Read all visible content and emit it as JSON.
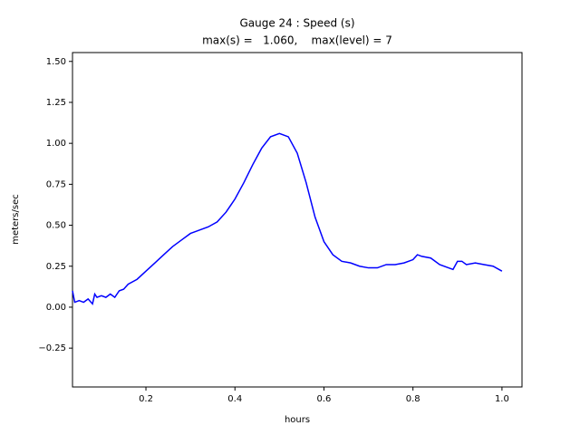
{
  "chart_data": {
    "type": "line",
    "title": "Gauge 24 : Speed (s)",
    "subtitle": "max(s) =   1.060,    max(level) = 7",
    "x_label": "hours",
    "y_label": "meters/sec",
    "x": [
      0.035,
      0.04,
      0.05,
      0.06,
      0.07,
      0.08,
      0.085,
      0.09,
      0.1,
      0.11,
      0.12,
      0.13,
      0.14,
      0.15,
      0.16,
      0.18,
      0.2,
      0.22,
      0.24,
      0.26,
      0.28,
      0.3,
      0.32,
      0.34,
      0.36,
      0.38,
      0.4,
      0.42,
      0.44,
      0.46,
      0.48,
      0.5,
      0.52,
      0.54,
      0.56,
      0.58,
      0.6,
      0.62,
      0.64,
      0.66,
      0.68,
      0.7,
      0.72,
      0.74,
      0.76,
      0.78,
      0.8,
      0.81,
      0.82,
      0.84,
      0.86,
      0.88,
      0.89,
      0.9,
      0.91,
      0.92,
      0.94,
      0.96,
      0.98,
      1.0
    ],
    "series": [
      {
        "name": "speed",
        "color": "#0000ff",
        "values": [
          0.1,
          0.03,
          0.04,
          0.03,
          0.05,
          0.02,
          0.08,
          0.06,
          0.07,
          0.06,
          0.08,
          0.06,
          0.1,
          0.11,
          0.14,
          0.17,
          0.22,
          0.27,
          0.32,
          0.37,
          0.41,
          0.45,
          0.47,
          0.49,
          0.52,
          0.58,
          0.66,
          0.76,
          0.87,
          0.97,
          1.04,
          1.06,
          1.04,
          0.94,
          0.76,
          0.55,
          0.4,
          0.32,
          0.28,
          0.27,
          0.25,
          0.24,
          0.24,
          0.26,
          0.26,
          0.27,
          0.29,
          0.32,
          0.31,
          0.3,
          0.26,
          0.24,
          0.23,
          0.28,
          0.28,
          0.26,
          0.27,
          0.26,
          0.25,
          0.22
        ]
      }
    ],
    "xlim": [
      0.035,
      1.045
    ],
    "xticks": [
      0.2,
      0.4,
      0.6,
      0.8,
      {
        "value": 1.0,
        "label": "1.0"
      }
    ],
    "ylim": [
      -0.487,
      1.554
    ],
    "yticks": [
      {
        "value": -0.25,
        "label": "−0.25"
      },
      {
        "value": 0,
        "label": "0.00"
      },
      0.25,
      {
        "value": 0.5,
        "label": "0.50"
      },
      0.75,
      {
        "value": 1.0,
        "label": "1.00"
      },
      1.25,
      {
        "value": 1.5,
        "label": "1.50"
      }
    ],
    "grid": false
  }
}
